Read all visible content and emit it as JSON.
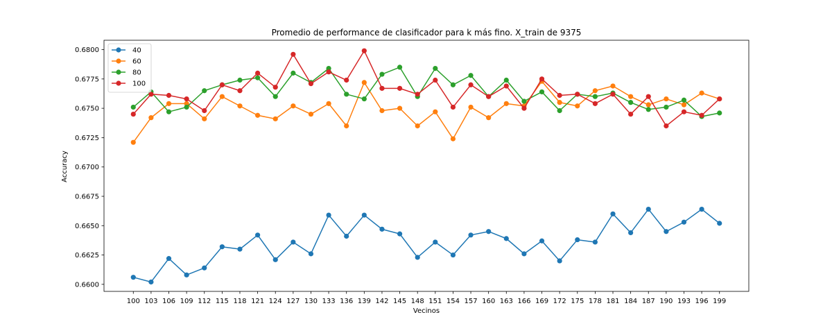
{
  "chart_data": {
    "type": "line",
    "title": "Promedio de performance de clasificador para k más fino. X_train de 9375",
    "xlabel": "Vecinos",
    "ylabel": "Accuracy",
    "x": [
      100,
      103,
      106,
      109,
      112,
      115,
      118,
      121,
      124,
      127,
      130,
      133,
      136,
      139,
      142,
      145,
      148,
      151,
      154,
      157,
      160,
      163,
      166,
      169,
      172,
      175,
      178,
      181,
      184,
      187,
      190,
      193,
      196,
      199
    ],
    "ylim": [
      0.6594,
      0.6808
    ],
    "yticks": [
      0.66,
      0.6625,
      0.665,
      0.6675,
      0.67,
      0.6725,
      0.675,
      0.6775,
      0.68
    ],
    "ytick_labels": [
      "0.6600",
      "0.6625",
      "0.6650",
      "0.6675",
      "0.6700",
      "0.6725",
      "0.6750",
      "0.6775",
      "0.6800"
    ],
    "legend_position": "top-left",
    "grid": false,
    "series": [
      {
        "name": "40",
        "color": "#1f77b4",
        "values": [
          0.6606,
          0.6602,
          0.6622,
          0.6608,
          0.6614,
          0.6632,
          0.663,
          0.6642,
          0.6621,
          0.6636,
          0.6626,
          0.6659,
          0.6641,
          0.6659,
          0.6647,
          0.6643,
          0.6623,
          0.6636,
          0.6625,
          0.6642,
          0.6645,
          0.6639,
          0.6626,
          0.6637,
          0.662,
          0.6638,
          0.6636,
          0.666,
          0.6644,
          0.6664,
          0.6645,
          0.6653,
          0.6664,
          0.6652
        ]
      },
      {
        "name": "60",
        "color": "#ff7f0e",
        "values": [
          0.6721,
          0.6742,
          0.6754,
          0.6754,
          0.6741,
          0.676,
          0.6752,
          0.6744,
          0.6741,
          0.6752,
          0.6745,
          0.6754,
          0.6735,
          0.6772,
          0.6748,
          0.675,
          0.6735,
          0.6747,
          0.6724,
          0.6751,
          0.6742,
          0.6754,
          0.6752,
          0.6773,
          0.6755,
          0.6752,
          0.6765,
          0.6769,
          0.676,
          0.6753,
          0.6758,
          0.6753,
          0.6763,
          0.6758
        ]
      },
      {
        "name": "80",
        "color": "#2ca02c",
        "values": [
          0.6751,
          0.6764,
          0.6747,
          0.6751,
          0.6765,
          0.677,
          0.6774,
          0.6776,
          0.676,
          0.678,
          0.6772,
          0.6784,
          0.6762,
          0.6758,
          0.6779,
          0.6785,
          0.676,
          0.6784,
          0.677,
          0.6778,
          0.676,
          0.6774,
          0.6756,
          0.6764,
          0.6748,
          0.6762,
          0.676,
          0.6763,
          0.6755,
          0.6749,
          0.6751,
          0.6757,
          0.6743,
          0.6746
        ]
      },
      {
        "name": "100",
        "color": "#d62728",
        "values": [
          0.6745,
          0.6762,
          0.6761,
          0.6758,
          0.6748,
          0.677,
          0.6765,
          0.678,
          0.6768,
          0.6796,
          0.6771,
          0.6781,
          0.6774,
          0.6799,
          0.6767,
          0.6767,
          0.6762,
          0.6774,
          0.6751,
          0.677,
          0.676,
          0.6769,
          0.675,
          0.6775,
          0.6761,
          0.6762,
          0.6754,
          0.6762,
          0.6745,
          0.676,
          0.6735,
          0.6747,
          0.6744,
          0.6758
        ]
      }
    ]
  }
}
